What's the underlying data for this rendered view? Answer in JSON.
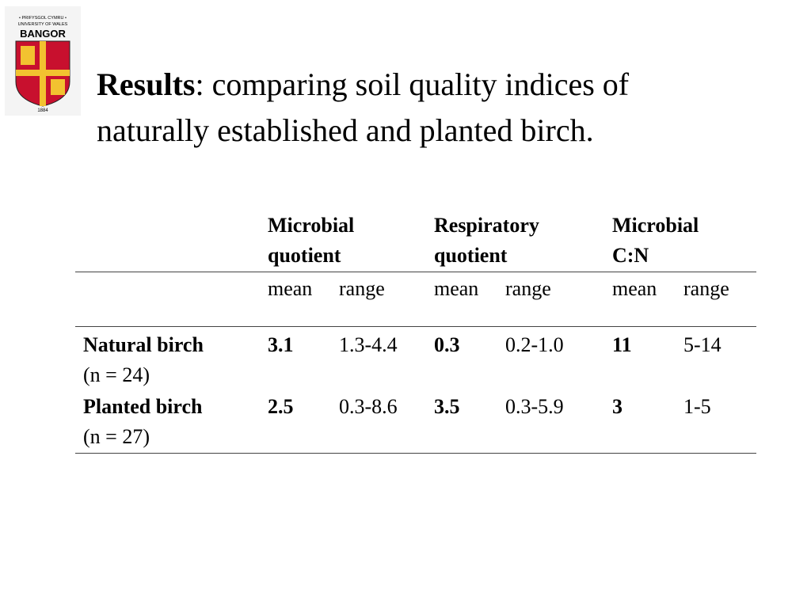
{
  "logo": {
    "line1": "• PRIFYSGOL CYMRU •",
    "line2": "UNIVERSITY OF WALES",
    "name": "BANGOR",
    "year": "1884"
  },
  "title": {
    "bold": "Results",
    "line1": ": comparing soil quality indices of",
    "line2": "naturally established and planted birch."
  },
  "table": {
    "groups": [
      [
        "Microbial",
        "quotient"
      ],
      [
        "Respiratory",
        "quotient"
      ],
      [
        "Microbial",
        "C:N"
      ]
    ],
    "subheaders": [
      "mean",
      "range",
      "mean",
      "range",
      "mean",
      "range"
    ],
    "rows": [
      {
        "label": [
          "Natural birch",
          "(n = 24)"
        ],
        "cells": [
          "3.1",
          "1.3-4.4",
          "0.3",
          "0.2-1.0",
          "11",
          "5-14"
        ]
      },
      {
        "label": [
          "Planted birch",
          "(n = 27)"
        ],
        "cells": [
          "2.5",
          "0.3-8.6",
          "3.5",
          "0.3-5.9",
          "3",
          "1-5"
        ]
      }
    ]
  }
}
